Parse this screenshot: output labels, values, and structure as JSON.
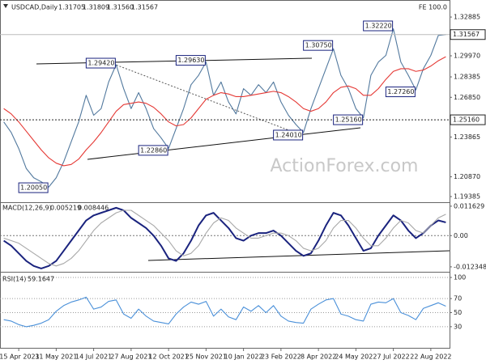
{
  "chart_data": [
    {
      "type": "line",
      "title": "USDCAD,Daily",
      "header_values": [
        "1.31705",
        "1.31809",
        "1.31560"
      ],
      "badge": "FE 100.0",
      "watermark": "ActionForex.com",
      "categories": [
        null,
        null,
        "15 Apr 2021",
        null,
        null,
        null,
        null,
        "31 May 2021",
        null,
        null,
        null,
        null,
        "14 Jul 2021",
        null,
        null,
        null,
        null,
        "27 Aug 2021",
        null,
        null,
        null,
        null,
        "12 Oct 2021",
        null,
        null,
        null,
        null,
        "25 Nov 2021",
        null,
        null,
        null,
        null,
        "10 Jan 2022",
        null,
        null,
        null,
        null,
        "23 Feb 2022",
        null,
        null,
        null,
        null,
        "8 Apr 2022",
        null,
        null,
        null,
        null,
        "24 May 2022",
        null,
        null,
        null,
        null,
        "7 Jul 2022",
        null,
        null,
        null,
        null,
        "22 Aug 2022",
        null,
        null
      ],
      "series": [
        {
          "color": "#52799e",
          "values": [
            1.25,
            1.242,
            1.23,
            1.215,
            1.208,
            1.205,
            1.201,
            1.208,
            1.22,
            1.235,
            1.25,
            1.27,
            1.255,
            1.26,
            1.28,
            1.293,
            1.275,
            1.26,
            1.272,
            1.26,
            1.245,
            1.238,
            1.23,
            1.245,
            1.26,
            1.278,
            1.285,
            1.295,
            1.27,
            1.28,
            1.265,
            1.256,
            1.275,
            1.27,
            1.278,
            1.272,
            1.28,
            1.265,
            1.255,
            1.248,
            1.242,
            1.26,
            1.275,
            1.29,
            1.305,
            1.285,
            1.275,
            1.26,
            1.253,
            1.285,
            1.295,
            1.3,
            1.32,
            1.295,
            1.285,
            1.274,
            1.29,
            1.3,
            1.315,
            1.31567
          ]
        },
        {
          "color": "#e53935",
          "values": [
            1.26,
            1.256,
            1.25,
            1.243,
            1.236,
            1.229,
            1.223,
            1.219,
            1.217,
            1.218,
            1.222,
            1.229,
            1.235,
            1.242,
            1.25,
            1.258,
            1.263,
            1.264,
            1.265,
            1.264,
            1.261,
            1.256,
            1.25,
            1.247,
            1.248,
            1.253,
            1.26,
            1.267,
            1.27,
            1.272,
            1.271,
            1.269,
            1.269,
            1.27,
            1.271,
            1.272,
            1.273,
            1.272,
            1.269,
            1.265,
            1.26,
            1.258,
            1.26,
            1.265,
            1.272,
            1.276,
            1.277,
            1.275,
            1.27,
            1.27,
            1.275,
            1.282,
            1.288,
            1.29,
            1.29,
            1.288,
            1.289,
            1.292,
            1.296,
            1.299
          ]
        }
      ],
      "ylim": [
        1.1896,
        1.3368
      ],
      "yticks": [
        1.32885,
        {
          "value": 1.2997,
          "label": "1.29970"
        },
        1.28385,
        {
          "value": 1.2685,
          "label": "1.26850"
        },
        1.23865,
        {
          "value": 1.2087,
          "label": "1.20870"
        },
        1.19385
      ],
      "hline": {
        "value": 1.2516,
        "label": "1.25160"
      },
      "last_price_line": true,
      "annotations": [
        {
          "at": 6,
          "value": 1.2005,
          "label": "1.20050"
        },
        {
          "at": 15,
          "value": 1.2942,
          "label": "1.29420"
        },
        {
          "at": 22,
          "value": 1.2286,
          "label": "1.22860"
        },
        {
          "at": 27,
          "value": 1.2963,
          "label": "1.29630"
        },
        {
          "at": 40,
          "value": 1.2401,
          "label": "1.24010"
        },
        {
          "at": 44,
          "value": 1.3075,
          "label": "1.30750"
        },
        {
          "at": 48,
          "value": 1.2516,
          "label": "1.25160"
        },
        {
          "at": 52,
          "value": 1.3222,
          "label": "1.32220"
        },
        {
          "at": 55,
          "value": 1.2726,
          "label": "1.27260"
        }
      ]
    },
    {
      "type": "line",
      "title": "MACD(12,26,9)",
      "series": [
        {
          "color": "#1a237e",
          "values": [
            -0.002,
            -0.004,
            -0.007,
            -0.01,
            -0.012,
            -0.013,
            -0.012,
            -0.01,
            -0.006,
            -0.002,
            0.002,
            0.006,
            0.008,
            0.009,
            0.01,
            0.011,
            0.01,
            0.007,
            0.005,
            0.003,
            0.0,
            -0.004,
            -0.009,
            -0.01,
            -0.007,
            -0.002,
            0.004,
            0.008,
            0.009,
            0.006,
            0.003,
            -0.001,
            -0.002,
            0.0,
            0.001,
            0.001,
            0.002,
            0.0,
            -0.003,
            -0.006,
            -0.008,
            -0.007,
            -0.002,
            0.004,
            0.009,
            0.008,
            0.004,
            -0.001,
            -0.006,
            -0.005,
            0.0,
            0.004,
            0.008,
            0.006,
            0.002,
            -0.001,
            0.001,
            0.004,
            0.006,
            0.005219
          ]
        },
        {
          "color": "#a8a8a8",
          "values": [
            -0.001,
            -0.002,
            -0.003,
            -0.005,
            -0.007,
            -0.009,
            -0.011,
            -0.012,
            -0.011,
            -0.009,
            -0.006,
            -0.002,
            0.002,
            0.005,
            0.007,
            0.009,
            0.01,
            0.01,
            0.008,
            0.006,
            0.004,
            0.001,
            -0.002,
            -0.006,
            -0.008,
            -0.007,
            -0.004,
            0.001,
            0.005,
            0.007,
            0.006,
            0.003,
            0.001,
            -0.001,
            -0.001,
            0.0,
            0.001,
            0.001,
            0.0,
            -0.002,
            -0.005,
            -0.006,
            -0.005,
            -0.002,
            0.003,
            0.006,
            0.006,
            0.003,
            -0.001,
            -0.004,
            -0.004,
            -0.001,
            0.003,
            0.006,
            0.005,
            0.002,
            0.001,
            0.004,
            0.007,
            0.008446
          ]
        }
      ],
      "ylim": [
        -0.0143,
        0.0132
      ],
      "yticks": [
        0.011629,
        {
          "value": 0,
          "label": "0.00"
        },
        -0.012348
      ],
      "zero_line": true
    },
    {
      "type": "line",
      "title": "RSI(14)",
      "series": [
        {
          "color": "#4a90d9",
          "values": [
            40,
            38,
            33,
            30,
            32,
            35,
            40,
            52,
            60,
            65,
            68,
            72,
            55,
            58,
            66,
            68,
            48,
            42,
            55,
            45,
            38,
            36,
            34,
            48,
            58,
            65,
            62,
            66,
            45,
            55,
            44,
            40,
            58,
            52,
            60,
            50,
            60,
            45,
            38,
            36,
            35,
            55,
            62,
            68,
            70,
            48,
            45,
            40,
            38,
            62,
            65,
            64,
            70,
            50,
            46,
            40,
            56,
            60,
            64,
            59.1647
          ]
        }
      ],
      "ylim": [
        0,
        100
      ],
      "yticks": [
        100,
        70,
        50,
        30
      ],
      "grid": true
    }
  ]
}
